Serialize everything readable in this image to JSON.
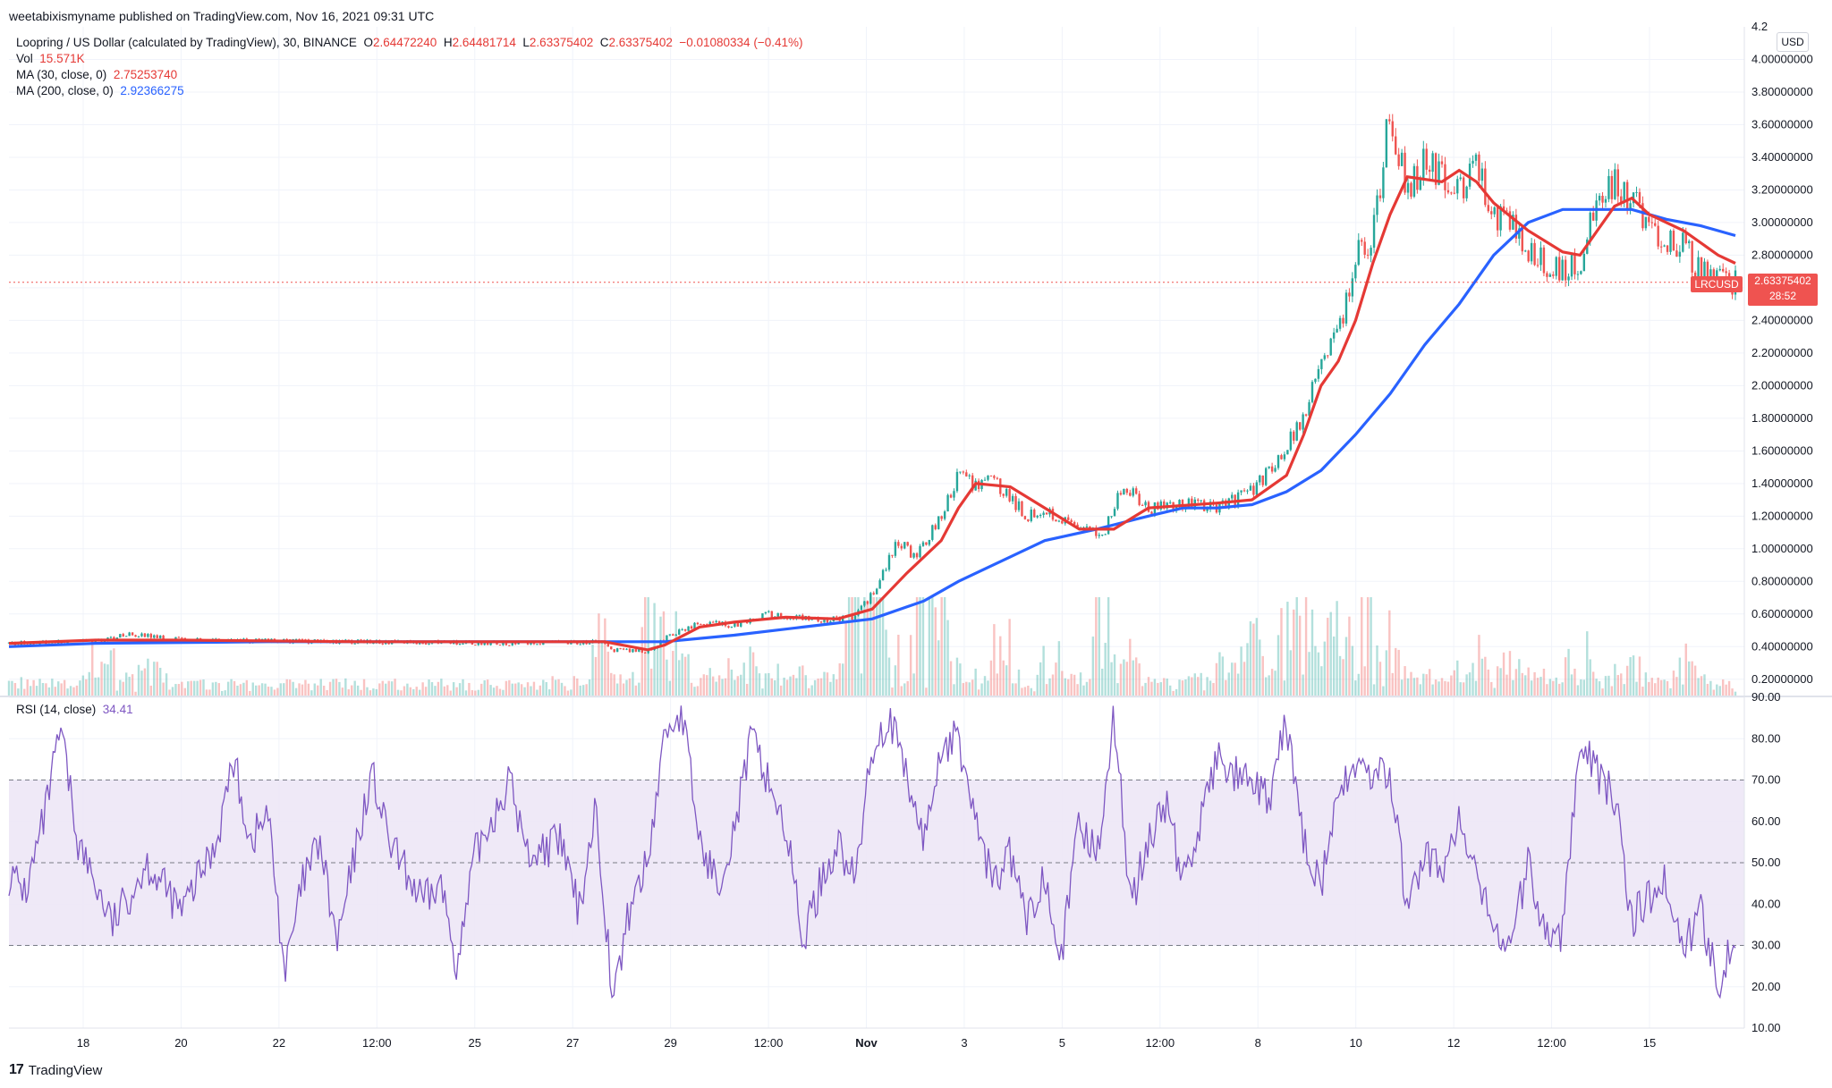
{
  "publisher": "weetabixismyname published on TradingView.com, Nov 16, 2021 09:31 UTC",
  "symbol": {
    "title": "Loopring / US Dollar (calculated by TradingView), 30, BINANCE",
    "o_label": "O",
    "o_value": "2.64472240",
    "h_label": "H",
    "h_value": "2.64481714",
    "l_label": "L",
    "l_value": "2.63375402",
    "c_label": "C",
    "c_value": "2.63375402",
    "change": "−0.01080334 (−0.41%)"
  },
  "volume": {
    "label": "Vol",
    "value": "15.571K"
  },
  "ma30": {
    "label": "MA (30, close, 0)",
    "value": "2.75253740"
  },
  "ma200": {
    "label": "MA (200, close, 0)",
    "value": "2.92366275"
  },
  "rsi": {
    "label": "RSI (14, close)",
    "value": "34.41"
  },
  "currency_badge": "USD",
  "last_price": {
    "ticker": "LRCUSD",
    "price": "2.63375402",
    "countdown": "28:52"
  },
  "brand": "TradingView",
  "colors": {
    "ma30": "#e53935",
    "ma200": "#2962ff",
    "rsi": "#7e57c2",
    "up": "#26a69a",
    "down": "#ef5350",
    "rsi_band": "#ede7f6"
  },
  "chart_data": {
    "type": "candlestick",
    "price_axis_ticks": [
      "4.2",
      "4.00000000",
      "3.80000000",
      "3.60000000",
      "3.40000000",
      "3.20000000",
      "3.00000000",
      "2.80000000",
      "2.60000000",
      "2.40000000",
      "2.20000000",
      "2.00000000",
      "1.80000000",
      "1.60000000",
      "1.40000000",
      "1.20000000",
      "1.00000000",
      "0.80000000",
      "0.60000000",
      "0.40000000",
      "0.20000000"
    ],
    "rsi_axis_ticks": [
      "90.00",
      "80.00",
      "70.00",
      "60.00",
      "50.00",
      "40.00",
      "30.00",
      "20.00",
      "10.00"
    ],
    "time_axis_ticks": [
      "18",
      "20",
      "22",
      "12:00",
      "25",
      "27",
      "29",
      "12:00",
      "Nov",
      "3",
      "5",
      "12:00",
      "8",
      "10",
      "12",
      "12:00",
      "15"
    ],
    "time_axis_bold": [
      "Nov"
    ],
    "price_ylim": [
      0.1,
      4.2
    ],
    "rsi_ylim": [
      10,
      90
    ],
    "rsi_band": [
      30,
      70
    ],
    "rsi_midline": 50,
    "price_path": [
      [
        0,
        0.42
      ],
      [
        0.05,
        0.43
      ],
      [
        0.07,
        0.48
      ],
      [
        0.1,
        0.44
      ],
      [
        0.2,
        0.43
      ],
      [
        0.3,
        0.42
      ],
      [
        0.345,
        0.43
      ],
      [
        0.35,
        0.38
      ],
      [
        0.37,
        0.37
      ],
      [
        0.38,
        0.45
      ],
      [
        0.4,
        0.55
      ],
      [
        0.42,
        0.53
      ],
      [
        0.44,
        0.6
      ],
      [
        0.47,
        0.56
      ],
      [
        0.49,
        0.58
      ],
      [
        0.5,
        0.72
      ],
      [
        0.515,
        1.05
      ],
      [
        0.525,
        0.95
      ],
      [
        0.54,
        1.2
      ],
      [
        0.55,
        1.45
      ],
      [
        0.56,
        1.38
      ],
      [
        0.57,
        1.42
      ],
      [
        0.59,
        1.2
      ],
      [
        0.6,
        1.25
      ],
      [
        0.62,
        1.1
      ],
      [
        0.635,
        1.12
      ],
      [
        0.645,
        1.4
      ],
      [
        0.66,
        1.25
      ],
      [
        0.68,
        1.28
      ],
      [
        0.7,
        1.25
      ],
      [
        0.72,
        1.35
      ],
      [
        0.735,
        1.55
      ],
      [
        0.75,
        1.8
      ],
      [
        0.76,
        2.2
      ],
      [
        0.77,
        2.3
      ],
      [
        0.78,
        2.8
      ],
      [
        0.79,
        2.9
      ],
      [
        0.8,
        3.7
      ],
      [
        0.81,
        3.15
      ],
      [
        0.82,
        3.4
      ],
      [
        0.83,
        3.3
      ],
      [
        0.84,
        3.2
      ],
      [
        0.85,
        3.35
      ],
      [
        0.86,
        3.05
      ],
      [
        0.87,
        3.0
      ],
      [
        0.88,
        2.85
      ],
      [
        0.89,
        2.75
      ],
      [
        0.9,
        2.7
      ],
      [
        0.91,
        2.75
      ],
      [
        0.92,
        3.2
      ],
      [
        0.93,
        3.25
      ],
      [
        0.94,
        3.15
      ],
      [
        0.95,
        2.95
      ],
      [
        0.96,
        2.9
      ],
      [
        0.97,
        2.85
      ],
      [
        0.98,
        2.7
      ],
      [
        0.99,
        2.64
      ],
      [
        1.0,
        2.63
      ]
    ],
    "ma30_path": [
      [
        0,
        0.42
      ],
      [
        0.05,
        0.44
      ],
      [
        0.1,
        0.44
      ],
      [
        0.2,
        0.43
      ],
      [
        0.3,
        0.43
      ],
      [
        0.345,
        0.43
      ],
      [
        0.37,
        0.38
      ],
      [
        0.38,
        0.41
      ],
      [
        0.4,
        0.52
      ],
      [
        0.42,
        0.55
      ],
      [
        0.45,
        0.58
      ],
      [
        0.48,
        0.57
      ],
      [
        0.5,
        0.63
      ],
      [
        0.52,
        0.85
      ],
      [
        0.54,
        1.05
      ],
      [
        0.55,
        1.25
      ],
      [
        0.56,
        1.4
      ],
      [
        0.58,
        1.38
      ],
      [
        0.6,
        1.25
      ],
      [
        0.62,
        1.12
      ],
      [
        0.64,
        1.12
      ],
      [
        0.66,
        1.25
      ],
      [
        0.7,
        1.28
      ],
      [
        0.72,
        1.3
      ],
      [
        0.74,
        1.45
      ],
      [
        0.75,
        1.7
      ],
      [
        0.76,
        2.0
      ],
      [
        0.77,
        2.15
      ],
      [
        0.78,
        2.4
      ],
      [
        0.79,
        2.75
      ],
      [
        0.8,
        3.05
      ],
      [
        0.81,
        3.28
      ],
      [
        0.83,
        3.25
      ],
      [
        0.84,
        3.32
      ],
      [
        0.85,
        3.25
      ],
      [
        0.86,
        3.12
      ],
      [
        0.88,
        2.95
      ],
      [
        0.9,
        2.82
      ],
      [
        0.91,
        2.8
      ],
      [
        0.92,
        2.95
      ],
      [
        0.93,
        3.1
      ],
      [
        0.94,
        3.15
      ],
      [
        0.95,
        3.05
      ],
      [
        0.97,
        2.95
      ],
      [
        0.99,
        2.8
      ],
      [
        1.0,
        2.75
      ]
    ],
    "ma200_path": [
      [
        0,
        0.4
      ],
      [
        0.05,
        0.42
      ],
      [
        0.15,
        0.43
      ],
      [
        0.25,
        0.43
      ],
      [
        0.345,
        0.43
      ],
      [
        0.38,
        0.43
      ],
      [
        0.42,
        0.47
      ],
      [
        0.46,
        0.52
      ],
      [
        0.5,
        0.57
      ],
      [
        0.53,
        0.68
      ],
      [
        0.55,
        0.8
      ],
      [
        0.58,
        0.95
      ],
      [
        0.6,
        1.05
      ],
      [
        0.63,
        1.12
      ],
      [
        0.66,
        1.2
      ],
      [
        0.68,
        1.25
      ],
      [
        0.7,
        1.25
      ],
      [
        0.72,
        1.27
      ],
      [
        0.74,
        1.35
      ],
      [
        0.76,
        1.48
      ],
      [
        0.78,
        1.7
      ],
      [
        0.8,
        1.95
      ],
      [
        0.82,
        2.25
      ],
      [
        0.84,
        2.5
      ],
      [
        0.86,
        2.8
      ],
      [
        0.88,
        3.0
      ],
      [
        0.9,
        3.08
      ],
      [
        0.92,
        3.08
      ],
      [
        0.94,
        3.08
      ],
      [
        0.96,
        3.02
      ],
      [
        0.98,
        2.98
      ],
      [
        1.0,
        2.92
      ]
    ],
    "rsi_path": [
      [
        0,
        47
      ],
      [
        0.01,
        43
      ],
      [
        0.02,
        60
      ],
      [
        0.03,
        82
      ],
      [
        0.04,
        55
      ],
      [
        0.05,
        45
      ],
      [
        0.06,
        35
      ],
      [
        0.08,
        50
      ],
      [
        0.1,
        38
      ],
      [
        0.12,
        55
      ],
      [
        0.13,
        75
      ],
      [
        0.14,
        55
      ],
      [
        0.15,
        62
      ],
      [
        0.16,
        23
      ],
      [
        0.17,
        45
      ],
      [
        0.18,
        55
      ],
      [
        0.19,
        30
      ],
      [
        0.21,
        72
      ],
      [
        0.22,
        55
      ],
      [
        0.24,
        40
      ],
      [
        0.25,
        45
      ],
      [
        0.26,
        25
      ],
      [
        0.27,
        52
      ],
      [
        0.29,
        70
      ],
      [
        0.3,
        52
      ],
      [
        0.32,
        55
      ],
      [
        0.33,
        38
      ],
      [
        0.34,
        64
      ],
      [
        0.35,
        16
      ],
      [
        0.36,
        40
      ],
      [
        0.37,
        50
      ],
      [
        0.38,
        82
      ],
      [
        0.39,
        86
      ],
      [
        0.4,
        55
      ],
      [
        0.41,
        45
      ],
      [
        0.42,
        58
      ],
      [
        0.43,
        80
      ],
      [
        0.44,
        70
      ],
      [
        0.45,
        58
      ],
      [
        0.46,
        31
      ],
      [
        0.47,
        45
      ],
      [
        0.48,
        55
      ],
      [
        0.49,
        45
      ],
      [
        0.5,
        78
      ],
      [
        0.51,
        85
      ],
      [
        0.52,
        70
      ],
      [
        0.53,
        55
      ],
      [
        0.54,
        78
      ],
      [
        0.55,
        80
      ],
      [
        0.56,
        60
      ],
      [
        0.57,
        45
      ],
      [
        0.58,
        52
      ],
      [
        0.59,
        35
      ],
      [
        0.6,
        48
      ],
      [
        0.61,
        28
      ],
      [
        0.62,
        60
      ],
      [
        0.63,
        52
      ],
      [
        0.64,
        85
      ],
      [
        0.65,
        40
      ],
      [
        0.66,
        55
      ],
      [
        0.67,
        65
      ],
      [
        0.68,
        45
      ],
      [
        0.69,
        60
      ],
      [
        0.7,
        75
      ],
      [
        0.72,
        68
      ],
      [
        0.73,
        65
      ],
      [
        0.74,
        84
      ],
      [
        0.75,
        55
      ],
      [
        0.76,
        45
      ],
      [
        0.77,
        65
      ],
      [
        0.78,
        75
      ],
      [
        0.79,
        70
      ],
      [
        0.8,
        72
      ],
      [
        0.81,
        38
      ],
      [
        0.82,
        52
      ],
      [
        0.83,
        48
      ],
      [
        0.84,
        60
      ],
      [
        0.85,
        45
      ],
      [
        0.86,
        35
      ],
      [
        0.87,
        30
      ],
      [
        0.88,
        50
      ],
      [
        0.89,
        32
      ],
      [
        0.9,
        33
      ],
      [
        0.91,
        82
      ],
      [
        0.92,
        72
      ],
      [
        0.93,
        66
      ],
      [
        0.94,
        36
      ],
      [
        0.95,
        42
      ],
      [
        0.96,
        45
      ],
      [
        0.97,
        30
      ],
      [
        0.98,
        38
      ],
      [
        0.99,
        21
      ],
      [
        1.0,
        34
      ]
    ]
  }
}
